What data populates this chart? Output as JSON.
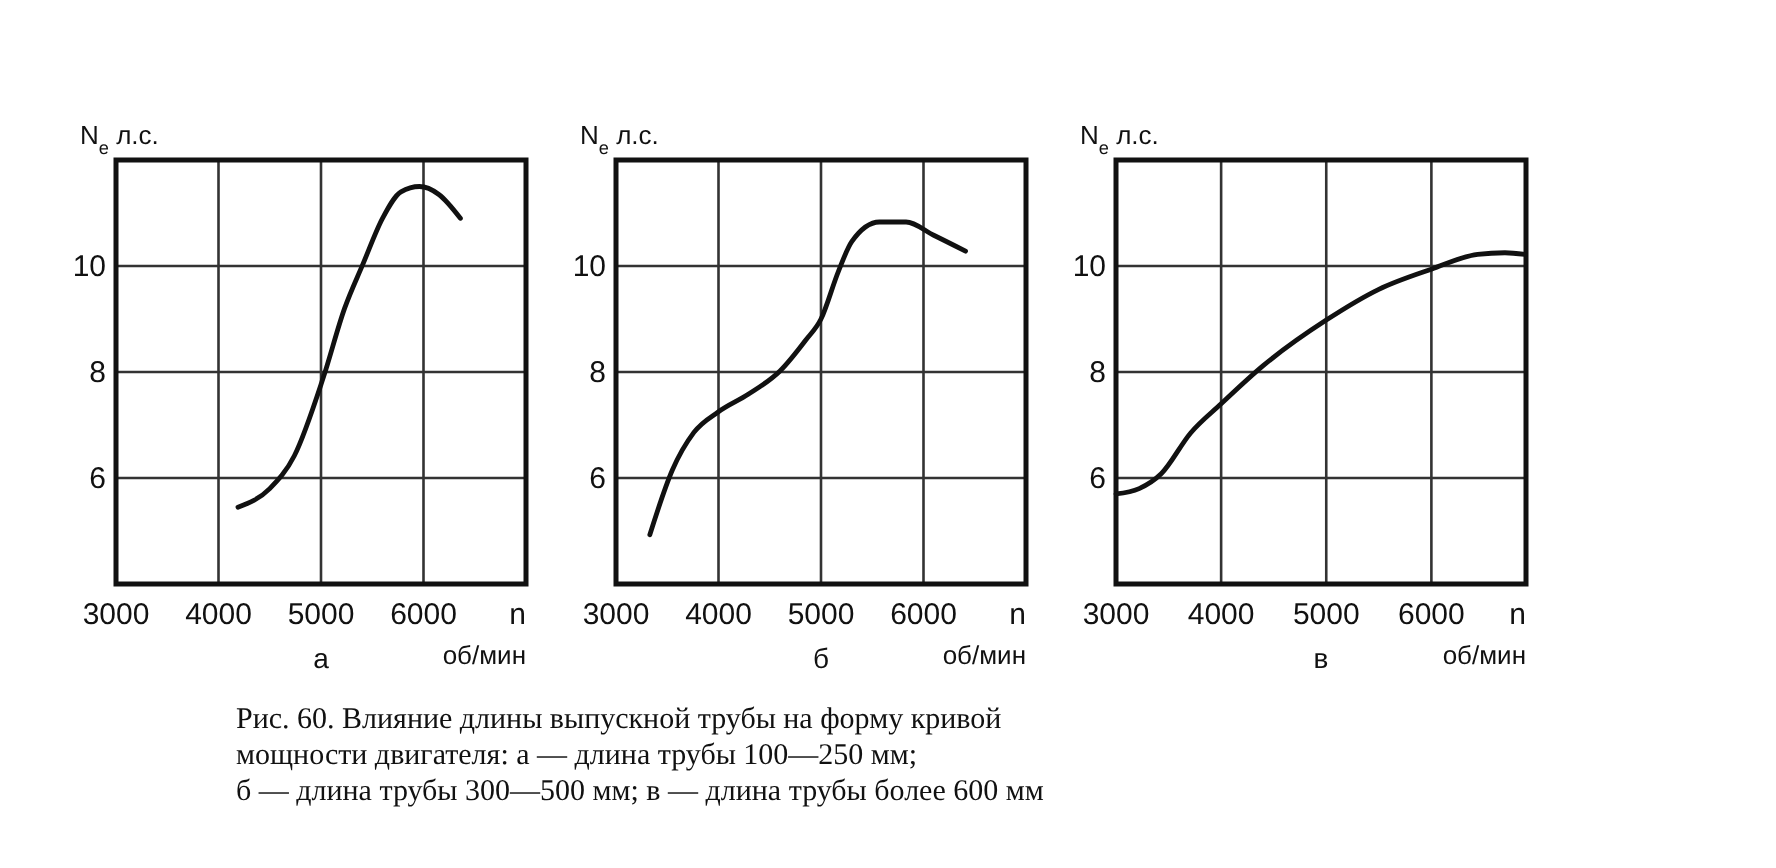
{
  "chart_data": [
    {
      "type": "line",
      "title": "а",
      "ylabel": "N$_{e}$ л.с.",
      "xlabel": "n об/мин",
      "xlim": [
        3000,
        7000
      ],
      "ylim": [
        4,
        12
      ],
      "xticks": [
        3000,
        4000,
        5000,
        6000
      ],
      "yticks": [
        6,
        8,
        10
      ],
      "grid": true,
      "x": [
        4190,
        4500,
        4740,
        5020,
        5230,
        5410,
        5600,
        5780,
        5960,
        6150,
        6360
      ],
      "series": [
        {
          "color": "#111111",
          "values": [
            5.45,
            5.8,
            6.42,
            7.88,
            9.2,
            10.04,
            10.9,
            11.4,
            11.5,
            11.35,
            10.9
          ]
        }
      ],
      "annotations": [
        "Рис. 60. Влияние длины выпускной трубы на форму кривой",
        "мощности двигателя: а — длина трубы 100—250 мм;",
        "б — длина трубы 300—500 мм; в — длина трубы более 600 мм"
      ]
    },
    {
      "type": "line",
      "title": "б",
      "ylabel": "N$_{e}$ л.с.",
      "xlabel": "n об/мин",
      "xlim": [
        3000,
        7000
      ],
      "ylim": [
        4,
        12
      ],
      "xticks": [
        3000,
        4000,
        5000,
        6000
      ],
      "yticks": [
        6,
        8,
        10
      ],
      "grid": true,
      "x": [
        3330,
        3550,
        3760,
        4000,
        4290,
        4600,
        4850,
        5000,
        5170,
        5300,
        5570,
        5830,
        6100,
        6410
      ],
      "series": [
        {
          "color": "#111111",
          "values": [
            4.93,
            6.15,
            6.86,
            7.25,
            7.58,
            8.02,
            8.6,
            9.0,
            9.9,
            10.46,
            10.83,
            10.83,
            10.58,
            10.28
          ]
        }
      ]
    },
    {
      "type": "line",
      "title": "в",
      "ylabel": "N$_{e}$ л.с.",
      "xlabel": "n об/мин",
      "xlim": [
        3000,
        6900
      ],
      "ylim": [
        4,
        12
      ],
      "xticks": [
        3000,
        4000,
        5000,
        6000
      ],
      "yticks": [
        6,
        8,
        10
      ],
      "grid": true,
      "x": [
        3000,
        3220,
        3430,
        3710,
        4000,
        4400,
        5000,
        5500,
        6000,
        6440,
        6700,
        6890
      ],
      "series": [
        {
          "color": "#111111",
          "values": [
            5.7,
            5.8,
            6.08,
            6.85,
            7.4,
            8.12,
            8.98,
            9.56,
            9.94,
            10.22,
            10.25,
            10.22
          ]
        }
      ]
    }
  ]
}
